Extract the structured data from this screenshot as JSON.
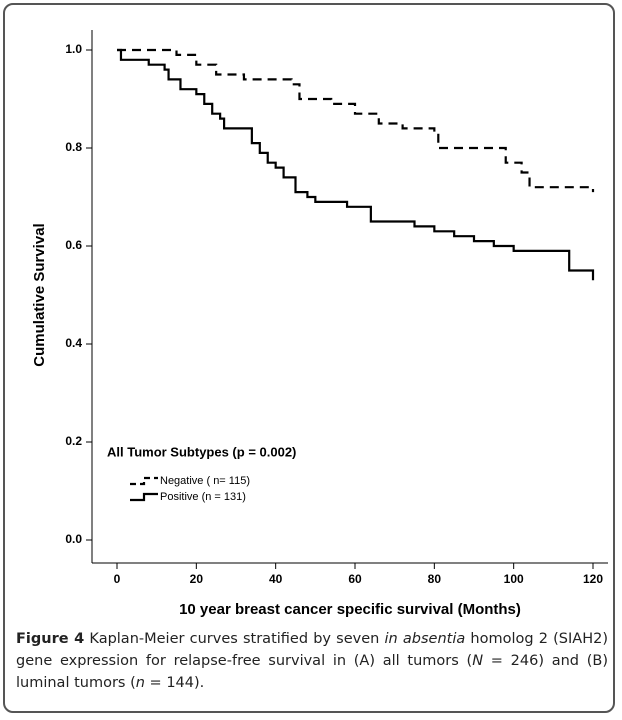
{
  "chart_data": {
    "type": "step",
    "xlabel": "10 year breast cancer specific survival (Months)",
    "ylabel": "Cumulative Survival",
    "legend_title": "All Tumor Subtypes (p = 0.002)",
    "xlim": [
      -4,
      124
    ],
    "ylim": [
      0,
      1
    ],
    "xticks": [
      0,
      20,
      40,
      60,
      80,
      100,
      120
    ],
    "yticks": [
      {
        "value": 0,
        "label": "0.0"
      },
      0.2,
      0.4,
      0.6,
      0.8,
      {
        "value": 1,
        "label": "1.0"
      }
    ],
    "series": [
      {
        "name": "Negative ( n= 115)",
        "color": "#000000",
        "linestyle": "dashed",
        "x": [
          0,
          15,
          20,
          25,
          32,
          44,
          46,
          54,
          60,
          66,
          72,
          80,
          81,
          98,
          102,
          104,
          120
        ],
        "values": [
          1.0,
          0.99,
          0.97,
          0.95,
          0.94,
          0.93,
          0.9,
          0.89,
          0.87,
          0.85,
          0.84,
          0.83,
          0.8,
          0.77,
          0.75,
          0.72,
          0.71
        ]
      },
      {
        "name": "Positive (n = 131)",
        "color": "#000000",
        "linestyle": "solid",
        "x": [
          0,
          1,
          8,
          12,
          13,
          16,
          20,
          22,
          24,
          26,
          27,
          34,
          36,
          38,
          40,
          42,
          45,
          48,
          50,
          58,
          64,
          75,
          80,
          85,
          90,
          95,
          100,
          114,
          120
        ],
        "values": [
          1.0,
          0.98,
          0.97,
          0.96,
          0.94,
          0.92,
          0.91,
          0.89,
          0.87,
          0.86,
          0.84,
          0.81,
          0.79,
          0.77,
          0.76,
          0.74,
          0.71,
          0.7,
          0.69,
          0.68,
          0.65,
          0.64,
          0.63,
          0.62,
          0.61,
          0.6,
          0.59,
          0.55,
          0.53
        ]
      }
    ]
  },
  "caption": {
    "label": "Figure 4",
    "segments": [
      {
        "text": " Kaplan-Meier curves stratified by seven ",
        "italic": false
      },
      {
        "text": "in absentia",
        "italic": true
      },
      {
        "text": " homolog 2 (SIAH2) gene expression for relapse-free survival in (A) all tumors (",
        "italic": false
      },
      {
        "text": "N",
        "italic": true
      },
      {
        "text": " = 246) and (B) luminal tumors (",
        "italic": false
      },
      {
        "text": "n",
        "italic": true
      },
      {
        "text": " = 144).",
        "italic": false
      }
    ]
  }
}
